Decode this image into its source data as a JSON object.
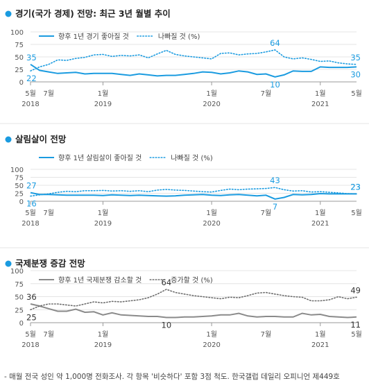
{
  "charts": [
    {
      "title": "경기(국가 경제) 전망:  최근 3년 월별 추이",
      "solid_color": "#1a9be0",
      "dotted_color": "#1a9be0",
      "label_color": "#1a9be0",
      "chart_data": {
        "type": "line",
        "ylim": [
          0,
          100
        ],
        "yticks": [
          "100",
          "75",
          "50",
          "25",
          "0"
        ],
        "xtick_labels": [
          "5월",
          "7월",
          "1월",
          "1월",
          "7월",
          "1월",
          "5월"
        ],
        "xtick_index": [
          0,
          2,
          8,
          20,
          26,
          32,
          36
        ],
        "year_labels": [
          "2018",
          "2019",
          "2020",
          "2021"
        ],
        "year_index": [
          0,
          8,
          20,
          32
        ],
        "series": [
          {
            "name": "향후 1년 경기 좋아질 것",
            "style": "solid",
            "values": [
              35,
              23,
              20,
              17,
              18,
              19,
              16,
              17,
              17,
              17,
              15,
              13,
              16,
              14,
              12,
              13,
              13,
              15,
              17,
              20,
              19,
              16,
              18,
              22,
              20,
              15,
              16,
              10,
              14,
              22,
              21,
              21,
              30,
              29,
              29,
              29,
              30
            ]
          },
          {
            "name": "나빠질 것 (%)",
            "style": "dotted",
            "values": [
              22,
              30,
              35,
              44,
              43,
              47,
              49,
              54,
              55,
              51,
              53,
              52,
              54,
              48,
              56,
              63,
              55,
              52,
              50,
              48,
              46,
              57,
              58,
              54,
              56,
              57,
              60,
              64,
              50,
              46,
              48,
              45,
              41,
              42,
              38,
              36,
              35
            ]
          }
        ],
        "annotations": [
          {
            "text": "35",
            "index": 0,
            "series": 0
          },
          {
            "text": "22",
            "index": 0,
            "series": 1
          },
          {
            "text": "64",
            "index": 27,
            "series": 1
          },
          {
            "text": "10",
            "index": 27,
            "series": 0
          },
          {
            "text": "35",
            "index": 36,
            "series": 1
          },
          {
            "text": "30",
            "index": 36,
            "series": 0
          }
        ]
      }
    },
    {
      "title": "살림살이 전망",
      "solid_color": "#1a9be0",
      "dotted_color": "#1a9be0",
      "label_color": "#1a9be0",
      "chart_data": {
        "type": "line",
        "ylim": [
          0,
          100
        ],
        "yticks": [
          "100",
          "75",
          "50",
          "25",
          "0"
        ],
        "xtick_labels": [
          "5월",
          "7월",
          "1월",
          "1월",
          "7월",
          "1월",
          "5월"
        ],
        "xtick_index": [
          0,
          2,
          8,
          20,
          26,
          32,
          36
        ],
        "year_labels": [
          "2018",
          "2019",
          "2020",
          "2021"
        ],
        "year_index": [
          0,
          8,
          20,
          32
        ],
        "series": [
          {
            "name": "향후 1년 살림살이 좋아질 것",
            "style": "solid",
            "values": [
              27,
              21,
              21,
              20,
              19,
              19,
              19,
              19,
              18,
              20,
              19,
              18,
              19,
              18,
              17,
              16,
              17,
              19,
              20,
              21,
              19,
              18,
              20,
              21,
              19,
              17,
              19,
              7,
              12,
              21,
              20,
              21,
              24,
              23,
              23,
              23,
              23
            ]
          },
          {
            "name": "나빠질 것 (%)",
            "style": "dotted",
            "values": [
              16,
              20,
              23,
              28,
              31,
              30,
              33,
              33,
              34,
              32,
              33,
              31,
              33,
              30,
              35,
              37,
              35,
              34,
              32,
              30,
              29,
              34,
              38,
              36,
              38,
              39,
              40,
              43,
              36,
              32,
              33,
              29,
              30,
              28,
              26,
              24,
              23
            ]
          }
        ],
        "annotations": [
          {
            "text": "27",
            "index": 0,
            "series": 0
          },
          {
            "text": "16",
            "index": 0,
            "series": 1
          },
          {
            "text": "43",
            "index": 27,
            "series": 1
          },
          {
            "text": "7",
            "index": 27,
            "series": 0
          },
          {
            "text": "23",
            "index": 36,
            "series": 0
          },
          {
            "text": "23",
            "index": 36,
            "series": 1
          }
        ]
      }
    },
    {
      "title": "국제분쟁 증감 전망",
      "solid_color": "#8a8a8a",
      "dotted_color": "#6d6d6d",
      "label_color": "#333333",
      "chart_data": {
        "type": "line",
        "ylim": [
          0,
          100
        ],
        "yticks": [
          "100",
          "75",
          "50",
          "25",
          "0"
        ],
        "xtick_labels": [
          "5월",
          "7월",
          "1월",
          "1월",
          "7월",
          "1월",
          "5월"
        ],
        "xtick_index": [
          0,
          2,
          8,
          20,
          26,
          32,
          36
        ],
        "year_labels": [
          "2018",
          "2019",
          "2020",
          "2021"
        ],
        "year_index": [
          0,
          8,
          20,
          32
        ],
        "series": [
          {
            "name": "향후 1년 국제분쟁 감소할 것",
            "style": "solid",
            "values": [
              36,
              32,
              27,
              22,
              22,
              26,
              20,
              21,
              15,
              19,
              15,
              14,
              13,
              12,
              12,
              10,
              10,
              11,
              11,
              12,
              13,
              15,
              15,
              18,
              13,
              11,
              12,
              12,
              11,
              11,
              18,
              15,
              16,
              12,
              11,
              10,
              11
            ]
          },
          {
            "name": "증가할 것 (%)",
            "style": "dotted",
            "values": [
              25,
              32,
              36,
              36,
              34,
              32,
              36,
              40,
              38,
              41,
              40,
              42,
              44,
              48,
              55,
              64,
              58,
              55,
              52,
              50,
              48,
              46,
              49,
              48,
              52,
              57,
              58,
              55,
              52,
              50,
              49,
              42,
              42,
              44,
              50,
              46,
              49
            ]
          }
        ],
        "annotations": [
          {
            "text": "36",
            "index": 0,
            "series": 0
          },
          {
            "text": "25",
            "index": 0,
            "series": 1
          },
          {
            "text": "64",
            "index": 15,
            "series": 1
          },
          {
            "text": "10",
            "index": 15,
            "series": 0
          },
          {
            "text": "49",
            "index": 36,
            "series": 1
          },
          {
            "text": "11",
            "index": 36,
            "series": 0
          }
        ]
      }
    }
  ],
  "footnote": "- 매월 전국 성인 약 1,000명 전화조사. 각 항목 '비슷하다' 포함 3점 척도. 한국갤럽 데일리 오피니언 제449호"
}
